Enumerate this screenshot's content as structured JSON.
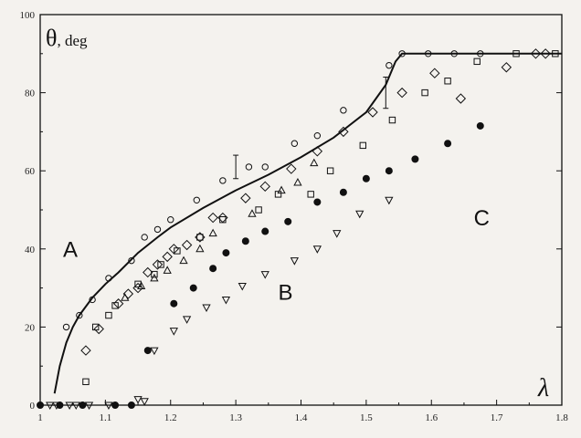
{
  "chart_data": {
    "type": "scatter",
    "ylabel_main": "θ",
    "ylabel_sub": ", deg",
    "xlabel": "λ",
    "xlim": [
      1.0,
      1.8
    ],
    "ylim": [
      0,
      100
    ],
    "x_ticks": [
      1,
      1.1,
      1.2,
      1.3,
      1.4,
      1.5,
      1.6,
      1.7,
      1.8
    ],
    "x_tick_labels": [
      "1",
      "1.1",
      "1.2",
      "1.3",
      "1.4",
      "1.5",
      "1.6",
      "1.7",
      "1.8"
    ],
    "y_ticks": [
      0,
      20,
      40,
      60,
      80,
      100
    ],
    "y_tick_labels": [
      "0",
      "20",
      "40",
      "60",
      "80",
      "100"
    ],
    "region_labels": [
      {
        "text": "A",
        "x": 1.035,
        "y": 38
      },
      {
        "text": "B",
        "x": 1.365,
        "y": 27
      },
      {
        "text": "C",
        "x": 1.665,
        "y": 46
      }
    ],
    "curve": {
      "x": [
        1.022,
        1.03,
        1.04,
        1.05,
        1.06,
        1.08,
        1.1,
        1.12,
        1.15,
        1.18,
        1.2,
        1.25,
        1.3,
        1.35,
        1.4,
        1.45,
        1.5,
        1.53,
        1.545,
        1.555,
        1.8
      ],
      "y": [
        3,
        10,
        16,
        20,
        23,
        27.5,
        31,
        34,
        39,
        43,
        45.5,
        50.5,
        55,
        59,
        63.5,
        68.5,
        75,
        82,
        88,
        90,
        90
      ]
    },
    "error_bars": [
      {
        "x": 1.3,
        "y": 61,
        "err": 3
      },
      {
        "x": 1.53,
        "y": 80,
        "err": 4
      }
    ],
    "series": [
      {
        "marker": "circle",
        "x": [
          1.04,
          1.06,
          1.08,
          1.105,
          1.14,
          1.16,
          1.18,
          1.2,
          1.24,
          1.28,
          1.32,
          1.345,
          1.39,
          1.425,
          1.465,
          1.535,
          1.555,
          1.595,
          1.635,
          1.675
        ],
        "y": [
          20,
          23,
          27,
          32.5,
          37,
          43,
          45,
          47.5,
          52.5,
          57.5,
          61,
          61,
          67,
          69,
          75.5,
          87,
          90,
          90,
          90,
          90
        ]
      },
      {
        "marker": "diamond",
        "x": [
          1.07,
          1.09,
          1.12,
          1.135,
          1.15,
          1.165,
          1.18,
          1.195,
          1.205,
          1.225,
          1.245,
          1.265,
          1.28,
          1.315,
          1.345,
          1.385,
          1.425,
          1.465,
          1.51,
          1.555,
          1.605,
          1.645,
          1.715,
          1.76,
          1.775
        ],
        "y": [
          14,
          19.5,
          26,
          28.5,
          30,
          34,
          36,
          38,
          40,
          41,
          43,
          48,
          48,
          53,
          56,
          60.5,
          65,
          70,
          75,
          80,
          85,
          78.5,
          86.5,
          90,
          90
        ]
      },
      {
        "marker": "square",
        "x": [
          1.07,
          1.085,
          1.105,
          1.115,
          1.15,
          1.175,
          1.185,
          1.21,
          1.245,
          1.28,
          1.335,
          1.365,
          1.415,
          1.445,
          1.495,
          1.54,
          1.59,
          1.625,
          1.67,
          1.73,
          1.79
        ],
        "y": [
          6,
          20,
          23,
          25.5,
          31,
          33.5,
          36,
          39.5,
          43,
          47.5,
          50,
          54,
          54,
          60,
          66.5,
          73,
          80,
          83,
          88,
          90,
          90
        ]
      },
      {
        "marker": "triangle",
        "x": [
          1.13,
          1.155,
          1.175,
          1.195,
          1.22,
          1.245,
          1.265,
          1.325,
          1.37,
          1.395,
          1.42
        ],
        "y": [
          27.5,
          30.5,
          32.5,
          34.5,
          37,
          40,
          44,
          49,
          55,
          57,
          62
        ]
      },
      {
        "marker": "filled-circle",
        "x": [
          1.165,
          1.205,
          1.235,
          1.265,
          1.285,
          1.315,
          1.345,
          1.38,
          1.425,
          1.465,
          1.5,
          1.535,
          1.575,
          1.625,
          1.675
        ],
        "y": [
          14,
          26,
          30,
          35,
          39,
          42,
          44.5,
          47,
          52,
          54.5,
          58,
          60,
          63,
          67,
          71.5
        ]
      },
      {
        "marker": "inverted-triangle",
        "x": [
          1.15,
          1.175,
          1.205,
          1.225,
          1.255,
          1.285,
          1.31,
          1.345,
          1.39,
          1.425,
          1.455,
          1.49,
          1.535
        ],
        "y": [
          1.5,
          14,
          19,
          22,
          25,
          27,
          30.5,
          33.5,
          37,
          40,
          44,
          49,
          52.5
        ]
      },
      {
        "marker": "filled-circle-axis",
        "x": [
          1.0,
          1.03,
          1.065,
          1.115,
          1.14
        ],
        "y": [
          0,
          0,
          0,
          0,
          0
        ]
      },
      {
        "marker": "open-axis",
        "x": [
          1.015,
          1.025,
          1.045,
          1.055,
          1.075,
          1.105,
          1.16
        ],
        "y": [
          0,
          0,
          0,
          0,
          0,
          0,
          1
        ]
      }
    ]
  }
}
